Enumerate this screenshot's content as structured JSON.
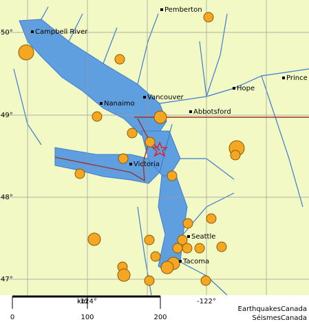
{
  "map": {
    "cities": [
      "Pemberton",
      "Campbell River",
      "Vancouver",
      "Nanaimo",
      "Abbotsford",
      "Hope",
      "Prince",
      "Victoria",
      "Seattle",
      "Tacoma"
    ],
    "lat_labels": [
      "50°",
      "49°",
      "48°",
      "47°"
    ],
    "lon_labels": [
      "-124°",
      "-122°"
    ],
    "scale": {
      "unit": "km",
      "ticks": [
        "0",
        "100",
        "200"
      ]
    },
    "credits": [
      "EarthquakesCanada",
      "SéismesCanada"
    ]
  }
}
